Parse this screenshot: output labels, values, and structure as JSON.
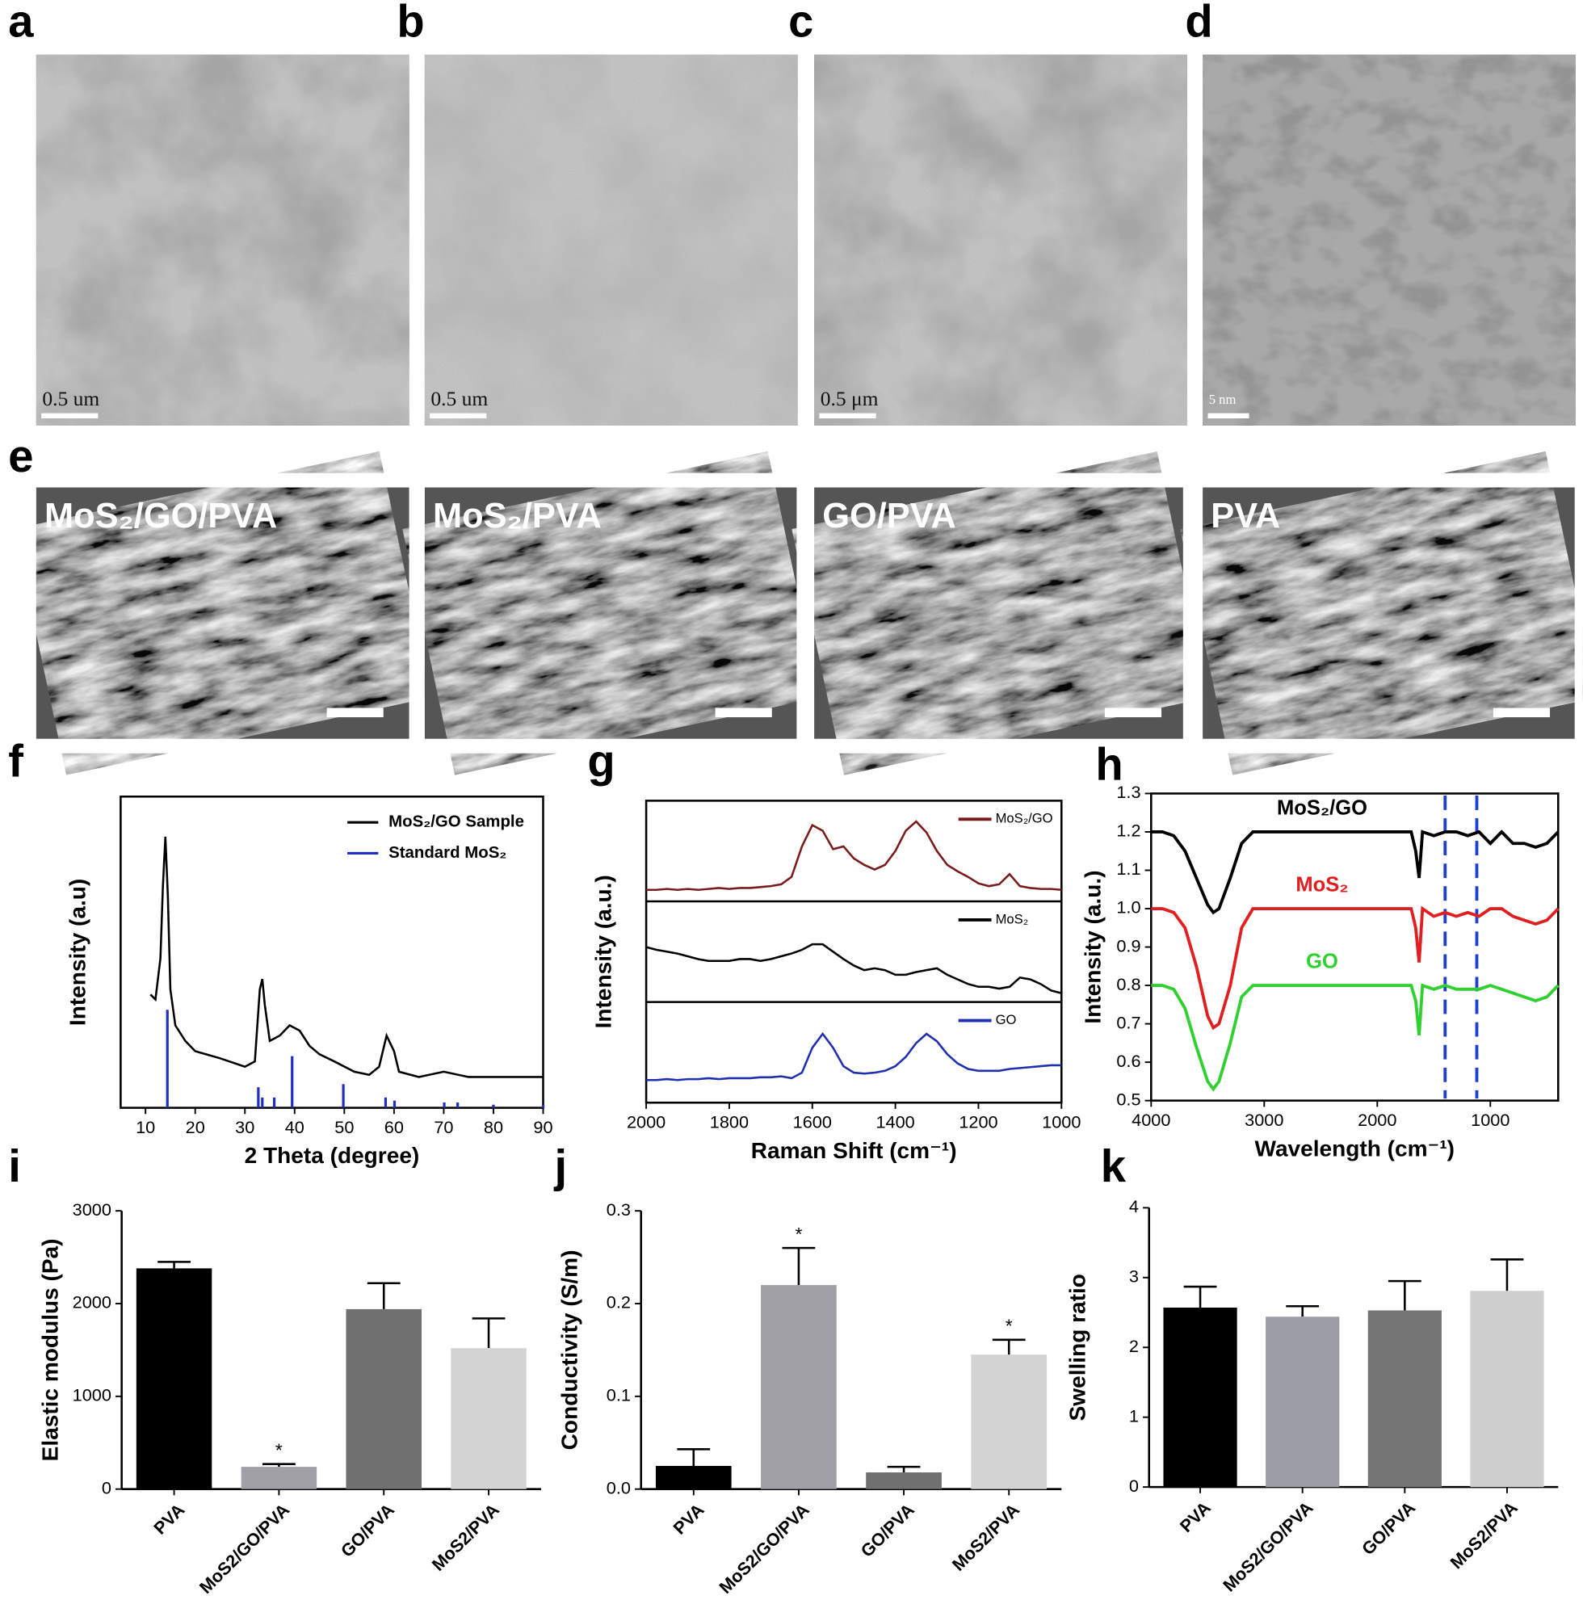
{
  "images": [
    {
      "letter": "a",
      "scale": "0.5 um"
    },
    {
      "letter": "b",
      "scale": "0.5 um"
    },
    {
      "letter": "c",
      "scale": "0.5 μm"
    },
    {
      "letter": "d",
      "scale": "5 nm"
    }
  ],
  "sem": {
    "letter": "e",
    "labels": [
      "MoS₂/GO/PVA",
      "MoS₂/PVA",
      "GO/PVA",
      "PVA"
    ]
  },
  "chart_data": [
    {
      "label": "f",
      "type": "line",
      "xlabel": "2 Theta (degree)",
      "ylabel": "Intensity (a.u)",
      "xlim": [
        5,
        90
      ],
      "ylim": [
        0,
        100
      ],
      "xticks": [
        10,
        20,
        30,
        40,
        50,
        60,
        70,
        80,
        90
      ],
      "legend": "upper right",
      "series": [
        {
          "name": "MoS₂/GO Sample",
          "color": "#000000",
          "style": "line",
          "x": [
            11,
            12,
            13,
            13.5,
            14,
            14.5,
            15,
            16,
            18,
            20,
            25,
            30,
            32,
            33,
            33.5,
            34,
            35,
            37,
            39,
            41,
            43,
            45,
            48,
            52,
            55,
            57,
            58.5,
            60,
            61,
            65,
            70,
            75,
            80,
            85,
            90
          ],
          "values": [
            36.4,
            34.8,
            48,
            71.2,
            87.1,
            67.9,
            38.1,
            26.5,
            21.5,
            18.2,
            15.9,
            13.2,
            14.9,
            38.1,
            41.4,
            33.1,
            21.5,
            23.2,
            26.5,
            24.8,
            19.9,
            17.2,
            14.9,
            11.6,
            10.6,
            13.2,
            23.2,
            18.2,
            11.6,
            9.9,
            11.6,
            9.9,
            9.9,
            9.9,
            9.9
          ]
        },
        {
          "name": "Standard MoS₂",
          "color": "#1f2fc0",
          "style": "stick",
          "x": [
            14.4,
            32.7,
            33.5,
            35.9,
            39.5,
            49.8,
            58.3,
            60.1,
            70.1,
            72.8,
            80,
            90
          ],
          "values": [
            31.5,
            6.6,
            3.3,
            3.3,
            16.6,
            7.6,
            3.3,
            2.3,
            1.7,
            1.7,
            1,
            1
          ]
        }
      ]
    },
    {
      "label": "g",
      "type": "line",
      "stacked_panels": true,
      "xlabel": "Raman Shift (cm⁻¹)",
      "ylabel": "Intensity (a.u.)",
      "xlim": [
        2000,
        1000
      ],
      "ylim": [
        0,
        100
      ],
      "xticks": [
        2000,
        1800,
        1600,
        1400,
        1200,
        1000
      ],
      "legend": "upper right",
      "x": [
        2000,
        1975,
        1950,
        1925,
        1900,
        1875,
        1850,
        1825,
        1800,
        1775,
        1750,
        1725,
        1700,
        1675,
        1650,
        1625,
        1600,
        1575,
        1550,
        1525,
        1500,
        1475,
        1450,
        1425,
        1400,
        1375,
        1350,
        1325,
        1300,
        1275,
        1250,
        1225,
        1200,
        1175,
        1150,
        1125,
        1100,
        1075,
        1050,
        1025,
        1000
      ],
      "series": [
        {
          "name": "MoS₂/GO",
          "color": "#7b1a1a",
          "values": [
            8,
            8,
            9,
            8,
            9,
            8,
            9,
            10,
            9,
            10,
            10,
            11,
            12,
            14,
            22,
            55,
            78,
            72,
            52,
            55,
            42,
            35,
            30,
            35,
            50,
            72,
            82,
            70,
            50,
            35,
            28,
            22,
            15,
            12,
            14,
            25,
            12,
            10,
            9,
            9,
            8
          ]
        },
        {
          "name": "MoS₂",
          "color": "#000000",
          "values": [
            55,
            52,
            50,
            48,
            45,
            42,
            40,
            40,
            40,
            42,
            42,
            40,
            42,
            45,
            48,
            52,
            58,
            58,
            50,
            42,
            35,
            30,
            32,
            30,
            25,
            25,
            28,
            30,
            32,
            25,
            20,
            15,
            12,
            12,
            10,
            12,
            22,
            20,
            15,
            8,
            5
          ]
        },
        {
          "name": "GO",
          "color": "#1f2fb0",
          "values": [
            20,
            20,
            21,
            20,
            21,
            21,
            22,
            21,
            22,
            22,
            22,
            23,
            23,
            24,
            22,
            28,
            55,
            70,
            55,
            35,
            28,
            27,
            28,
            30,
            35,
            45,
            60,
            70,
            62,
            48,
            38,
            32,
            30,
            30,
            30,
            32,
            33,
            34,
            35,
            36,
            36
          ]
        }
      ]
    },
    {
      "label": "h",
      "type": "line",
      "xlabel": "Wavelength (cm⁻¹)",
      "ylabel": "Intensity (a.u.)",
      "xlim": [
        4000,
        400
      ],
      "ylim": [
        0.5,
        1.3
      ],
      "xticks": [
        4000,
        3000,
        2000,
        1000
      ],
      "yticks": [
        0.5,
        0.6,
        0.7,
        0.8,
        0.9,
        {
          "value": 1,
          "label": "1.0"
        },
        1.1,
        1.2,
        1.3
      ],
      "reference_lines": [
        1400,
        1120
      ],
      "reference_color": "#1f3fd0",
      "x": [
        4000,
        3900,
        3800,
        3700,
        3600,
        3500,
        3450,
        3400,
        3300,
        3200,
        3100,
        3000,
        2900,
        2500,
        2000,
        1800,
        1700,
        1660,
        1630,
        1600,
        1500,
        1400,
        1300,
        1200,
        1100,
        1000,
        900,
        800,
        700,
        600,
        500,
        400
      ],
      "series": [
        {
          "name": "MoS₂/GO",
          "color": "#000000",
          "values": [
            1.2,
            1.2,
            1.19,
            1.15,
            1.08,
            1.01,
            0.99,
            1.0,
            1.08,
            1.17,
            1.2,
            1.2,
            1.2,
            1.2,
            1.2,
            1.2,
            1.2,
            1.15,
            1.08,
            1.2,
            1.19,
            1.2,
            1.2,
            1.19,
            1.2,
            1.17,
            1.2,
            1.17,
            1.17,
            1.16,
            1.17,
            1.2
          ]
        },
        {
          "name": "MoS₂",
          "color": "#e02020",
          "values": [
            1.0,
            1.0,
            0.99,
            0.95,
            0.85,
            0.72,
            0.69,
            0.7,
            0.8,
            0.95,
            1.0,
            1.0,
            1.0,
            1.0,
            1.0,
            1.0,
            1.0,
            0.95,
            0.86,
            1.0,
            0.98,
            0.99,
            0.98,
            0.99,
            0.98,
            1.0,
            1.0,
            0.98,
            0.97,
            0.96,
            0.97,
            1.0
          ]
        },
        {
          "name": "GO",
          "color": "#30d030",
          "values": [
            0.8,
            0.8,
            0.79,
            0.74,
            0.64,
            0.55,
            0.53,
            0.55,
            0.65,
            0.77,
            0.8,
            0.8,
            0.8,
            0.8,
            0.8,
            0.8,
            0.8,
            0.76,
            0.67,
            0.8,
            0.79,
            0.8,
            0.79,
            0.79,
            0.79,
            0.8,
            0.79,
            0.78,
            0.77,
            0.76,
            0.77,
            0.8
          ]
        }
      ]
    },
    {
      "label": "i",
      "type": "bar",
      "ylabel": "Elastic modulus (Pa)",
      "categories": [
        "PVA",
        "MoS2/GO/PVA",
        "GO/PVA",
        "MoS2/PVA"
      ],
      "values": [
        2380,
        240,
        1940,
        1520
      ],
      "errors": [
        70,
        30,
        280,
        320
      ],
      "colors": [
        "#000000",
        "#a0a0a6",
        "#707070",
        "#d3d3d3"
      ],
      "ylim": [
        0,
        3000
      ],
      "yticks": [
        0,
        1000,
        2000,
        3000
      ],
      "annotations": [
        {
          "index": 1,
          "text": "*"
        }
      ]
    },
    {
      "label": "j",
      "type": "bar",
      "ylabel": "Conductivity (S/m)",
      "categories": [
        "PVA",
        "MoS2/GO/PVA",
        "GO/PVA",
        "MoS2/PVA"
      ],
      "values": [
        0.025,
        0.22,
        0.018,
        0.145
      ],
      "errors": [
        0.018,
        0.04,
        0.006,
        0.016
      ],
      "colors": [
        "#000000",
        "#a0a0a6",
        "#707070",
        "#d3d3d3"
      ],
      "ylim": [
        0,
        0.3
      ],
      "yticks": [
        {
          "value": 0,
          "label": "0.0"
        },
        0.1,
        0.2,
        0.3
      ],
      "annotations": [
        {
          "index": 1,
          "text": "*"
        },
        {
          "index": 3,
          "text": "*"
        }
      ]
    },
    {
      "label": "k",
      "type": "bar",
      "ylabel": "Swelling ratio",
      "categories": [
        "PVA",
        "MoS2/GO/PVA",
        "GO/PVA",
        "MoS2/PVA"
      ],
      "values": [
        2.57,
        2.44,
        2.53,
        2.81
      ],
      "errors": [
        0.3,
        0.15,
        0.42,
        0.45
      ],
      "colors": [
        "#000000",
        "#9d9da5",
        "#757575",
        "#cfcfcf"
      ],
      "ylim": [
        0,
        4
      ],
      "yticks": [
        0,
        1,
        2,
        3,
        4
      ],
      "annotations": []
    }
  ]
}
